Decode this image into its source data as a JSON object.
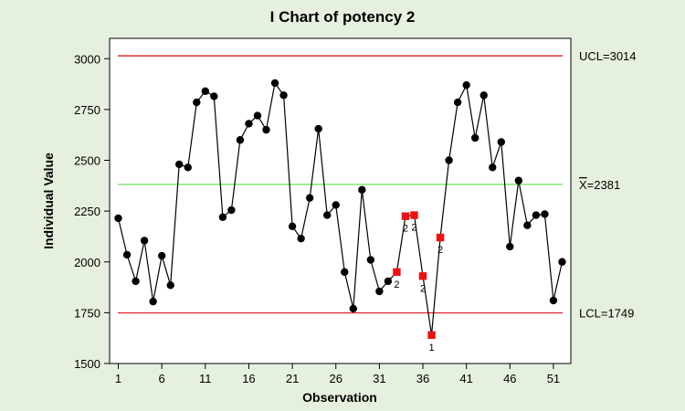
{
  "chart_data": {
    "type": "line",
    "title": "I Chart of potency 2",
    "xlabel": "Observation",
    "ylabel": "Individual Value",
    "xlim": [
      0,
      53
    ],
    "ylim": [
      1500,
      3100
    ],
    "x_ticks": [
      1,
      6,
      11,
      16,
      21,
      26,
      31,
      36,
      41,
      46,
      51
    ],
    "y_ticks": [
      1500,
      1750,
      2000,
      2250,
      2500,
      2750,
      3000
    ],
    "reference_lines": [
      {
        "name": "UCL",
        "label": "UCL=3014",
        "value": 3014,
        "color": "#e03030"
      },
      {
        "name": "mean",
        "label": "X=2381",
        "label_prefix": "X",
        "label_suffix": "=2381",
        "value": 2381,
        "color": "#7ee06a"
      },
      {
        "name": "LCL",
        "label": "LCL=1749",
        "value": 1749,
        "color": "#e03030"
      }
    ],
    "series": [
      {
        "x": [
          1,
          2,
          3,
          4,
          5,
          6,
          7,
          8,
          9,
          10,
          11,
          12,
          13,
          14,
          15,
          16,
          17,
          18,
          19,
          20,
          21,
          22,
          23,
          24,
          25,
          26,
          27,
          28,
          29,
          30,
          31,
          32,
          33,
          34,
          35,
          36,
          37,
          38,
          39,
          40,
          41,
          42,
          43,
          44,
          45,
          46,
          47,
          48,
          49,
          50,
          51,
          52
        ],
        "values": [
          2215,
          2035,
          1905,
          2105,
          1805,
          2030,
          1885,
          2480,
          2465,
          2785,
          2840,
          2815,
          2220,
          2255,
          2600,
          2680,
          2720,
          2650,
          2880,
          2820,
          2175,
          2115,
          2315,
          2655,
          2230,
          2280,
          1950,
          1770,
          2355,
          2010,
          1855,
          1905,
          1950,
          2225,
          2230,
          1930,
          1640,
          2120,
          2500,
          2785,
          2870,
          2610,
          2820,
          2465,
          2590,
          2075,
          2400,
          2180,
          2230,
          2235,
          1810,
          2000
        ],
        "color": "#000000"
      }
    ],
    "flagged_points": [
      {
        "x": 33,
        "label": "2"
      },
      {
        "x": 34,
        "label": "2"
      },
      {
        "x": 35,
        "label": "2"
      },
      {
        "x": 36,
        "label": "2"
      },
      {
        "x": 37,
        "label": "1"
      },
      {
        "x": 38,
        "label": "2"
      }
    ],
    "flag_color": "#ee1111",
    "background": "#e6f0de",
    "plot_background": "#ffffff",
    "grid": false,
    "legend": "none"
  }
}
